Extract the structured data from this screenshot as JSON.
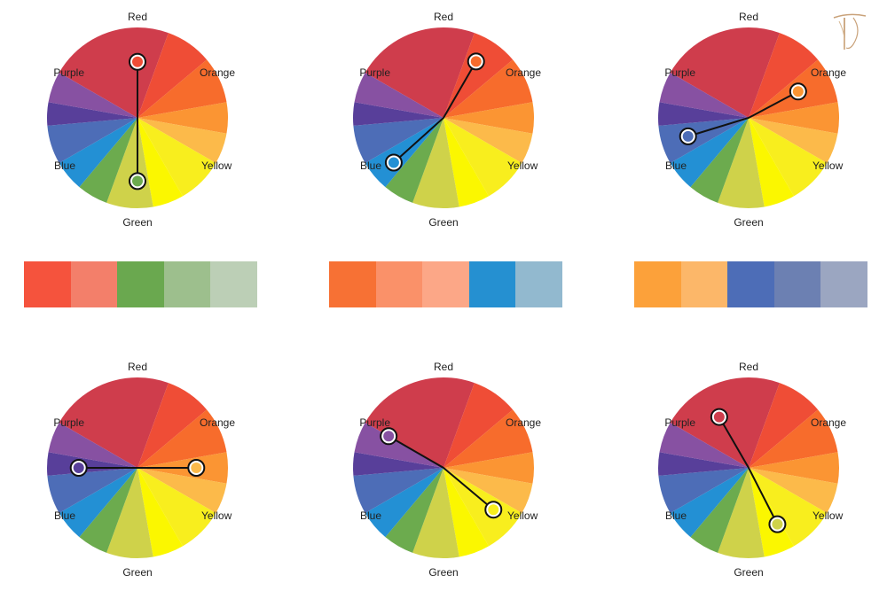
{
  "wheel_labels": {
    "red": "Red",
    "orange": "Orange",
    "yellow": "Yellow",
    "green": "Green",
    "blue": "Blue",
    "purple": "Purple"
  },
  "wheel_colors": [
    "#cf3d4c",
    "#ef4d36",
    "#f76c2c",
    "#fb9533",
    "#fcba4a",
    "#f8ee1e",
    "#fbf700",
    "#cfd24a",
    "#6cab4e",
    "#2390d4",
    "#4d6db7",
    "#583f9a",
    "#8751a2"
  ],
  "wheels": [
    {
      "id": "red-green",
      "markers": [
        {
          "color": "#ef4d36"
        },
        {
          "color": "#6cab4e"
        }
      ]
    },
    {
      "id": "orange-blue",
      "markers": [
        {
          "color": "#f76c2c"
        },
        {
          "color": "#2390d4"
        }
      ]
    },
    {
      "id": "orange-yellow-blue",
      "markers": [
        {
          "color": "#fb9533"
        },
        {
          "color": "#4d6db7"
        }
      ]
    },
    {
      "id": "purple-orange-yellow",
      "markers": [
        {
          "color": "#583f9a"
        },
        {
          "color": "#fcba4a"
        }
      ]
    },
    {
      "id": "purple-yellow",
      "markers": [
        {
          "color": "#8751a2"
        },
        {
          "color": "#f8ee1e"
        }
      ]
    },
    {
      "id": "red-yellow-green",
      "markers": [
        {
          "color": "#cf3d4c"
        },
        {
          "color": "#cfd24a"
        }
      ]
    }
  ],
  "palettes": [
    [
      "#f5533d",
      "#f37f6a",
      "#6aa84f",
      "#9dbf8d",
      "#bccfb6"
    ],
    [
      "#f77134",
      "#fa9169",
      "#fca787",
      "#2590d1",
      "#92b9cf"
    ],
    [
      "#fca13a",
      "#fcb769",
      "#4d6db7",
      "#6c80b2",
      "#9ba6c1"
    ]
  ]
}
